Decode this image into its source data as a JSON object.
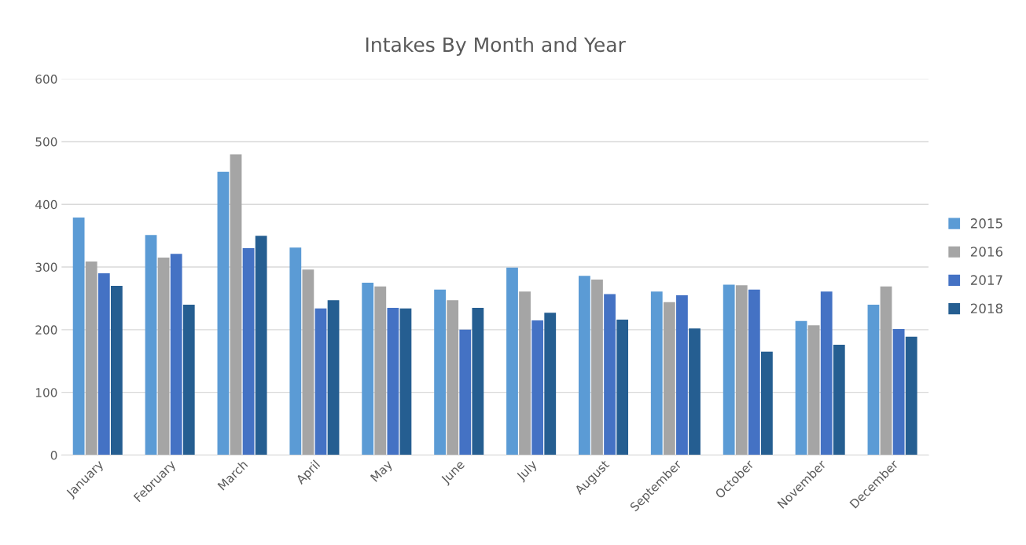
{
  "chart_data": {
    "type": "bar",
    "title": "Intakes By Month and Year",
    "categories": [
      "January",
      "February",
      "March",
      "April",
      "May",
      "June",
      "July",
      "August",
      "September",
      "October",
      "November",
      "December"
    ],
    "series": [
      {
        "name": "2015",
        "color": "#5b9bd5",
        "values": [
          379,
          351,
          452,
          331,
          275,
          264,
          299,
          286,
          261,
          272,
          214,
          240
        ]
      },
      {
        "name": "2016",
        "color": "#a5a5a5",
        "values": [
          309,
          315,
          480,
          296,
          269,
          247,
          261,
          280,
          244,
          271,
          207,
          269
        ]
      },
      {
        "name": "2017",
        "color": "#4472c4",
        "values": [
          290,
          321,
          330,
          234,
          235,
          200,
          215,
          257,
          255,
          264,
          261,
          201
        ]
      },
      {
        "name": "2018",
        "color": "#255e91",
        "values": [
          270,
          240,
          350,
          247,
          234,
          235,
          227,
          216,
          202,
          165,
          176,
          189
        ]
      }
    ],
    "ylim": [
      0,
      600
    ],
    "yticks": [
      0,
      100,
      200,
      300,
      400,
      500,
      600
    ],
    "grid": "y",
    "legend": "right"
  }
}
